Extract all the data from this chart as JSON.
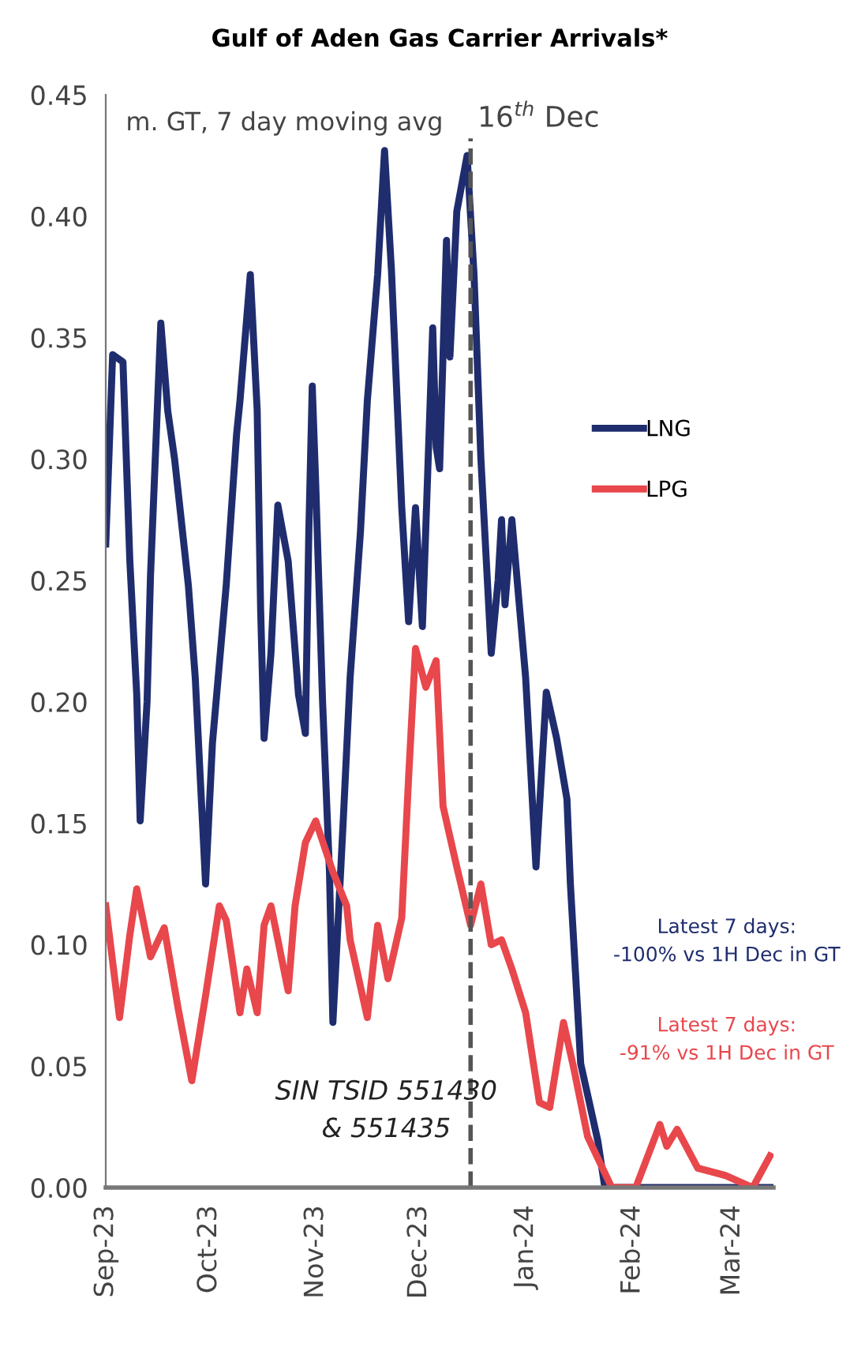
{
  "chart_data": {
    "type": "line",
    "title": "Gulf of Aden Gas Carrier Arrivals*",
    "x": [
      "2023-09-01",
      "2023-09-03",
      "2023-09-06",
      "2023-09-08",
      "2023-09-10",
      "2023-09-11",
      "2023-09-13",
      "2023-09-14",
      "2023-09-17",
      "2023-09-19",
      "2023-09-21",
      "2023-09-25",
      "2023-09-27",
      "2023-09-30",
      "2023-10-02",
      "2023-10-06",
      "2023-10-09",
      "2023-10-10",
      "2023-10-13",
      "2023-10-15",
      "2023-10-16",
      "2023-10-17",
      "2023-10-19",
      "2023-10-21",
      "2023-10-24",
      "2023-10-27",
      "2023-10-29",
      "2023-10-30",
      "2023-10-31",
      "2023-11-01",
      "2023-11-03",
      "2023-11-05",
      "2023-11-06",
      "2023-11-09",
      "2023-11-11",
      "2023-11-14",
      "2023-11-16",
      "2023-11-19",
      "2023-11-21",
      "2023-11-23",
      "2023-11-26",
      "2023-11-28",
      "2023-11-30",
      "2023-12-02",
      "2023-12-05",
      "2023-12-06",
      "2023-12-07",
      "2023-12-09",
      "2023-12-10",
      "2023-12-12",
      "2023-12-15",
      "2023-12-16",
      "2023-12-17",
      "2023-12-19",
      "2023-12-22",
      "2023-12-24",
      "2023-12-25",
      "2023-12-26",
      "2023-12-28",
      "2024-01-01",
      "2024-01-04",
      "2024-01-07",
      "2024-01-10",
      "2024-01-13",
      "2024-01-14",
      "2024-01-17",
      "2024-01-22",
      "2024-01-24",
      "2024-03-12"
    ],
    "series": [
      {
        "name": "LNG",
        "color": "#1f2d6e",
        "values": [
          0.265,
          0.343,
          0.34,
          0.258,
          0.203,
          0.151,
          0.2,
          0.252,
          0.356,
          0.32,
          0.3,
          0.248,
          0.21,
          0.125,
          0.183,
          0.248,
          0.31,
          0.324,
          0.376,
          0.32,
          0.238,
          0.185,
          0.22,
          0.281,
          0.258,
          0.203,
          0.187,
          0.27,
          0.33,
          0.29,
          0.2,
          0.13,
          0.068,
          0.151,
          0.21,
          0.27,
          0.324,
          0.376,
          0.427,
          0.378,
          0.28,
          0.233,
          0.28,
          0.231,
          0.354,
          0.305,
          0.296,
          0.39,
          0.342,
          0.402,
          0.425,
          0.4,
          0.376,
          0.3,
          0.22,
          0.25,
          0.275,
          0.24,
          0.275,
          0.21,
          0.132,
          0.204,
          0.185,
          0.16,
          0.125,
          0.051,
          0.019,
          0.0,
          0.0
        ]
      },
      {
        "name": "LPG",
        "color": "#e8474c",
        "x": [
          "2023-09-01",
          "2023-09-05",
          "2023-09-08",
          "2023-09-10",
          "2023-09-14",
          "2023-09-18",
          "2023-09-22",
          "2023-09-26",
          "2023-09-30",
          "2023-10-04",
          "2023-10-06",
          "2023-10-10",
          "2023-10-12",
          "2023-10-15",
          "2023-10-17",
          "2023-10-19",
          "2023-10-24",
          "2023-10-26",
          "2023-10-29",
          "2023-11-01",
          "2023-11-06",
          "2023-11-10",
          "2023-11-11",
          "2023-11-16",
          "2023-11-19",
          "2023-11-22",
          "2023-11-26",
          "2023-11-28",
          "2023-11-30",
          "2023-12-03",
          "2023-12-06",
          "2023-12-08",
          "2023-12-12",
          "2023-12-16",
          "2023-12-19",
          "2023-12-22",
          "2023-12-25",
          "2023-12-28",
          "2024-01-01",
          "2024-01-05",
          "2024-01-08",
          "2024-01-12",
          "2024-01-15",
          "2024-01-19",
          "2024-01-22",
          "2024-01-26",
          "2024-02-02",
          "2024-02-09",
          "2024-02-11",
          "2024-02-14",
          "2024-02-20",
          "2024-02-28",
          "2024-03-07",
          "2024-03-12"
        ],
        "values": [
          0.116,
          0.07,
          0.104,
          0.123,
          0.095,
          0.107,
          0.074,
          0.044,
          0.079,
          0.116,
          0.11,
          0.072,
          0.09,
          0.072,
          0.108,
          0.116,
          0.081,
          0.116,
          0.142,
          0.151,
          0.13,
          0.116,
          0.102,
          0.07,
          0.108,
          0.086,
          0.111,
          0.169,
          0.222,
          0.206,
          0.217,
          0.157,
          0.132,
          0.108,
          0.125,
          0.1,
          0.102,
          0.09,
          0.072,
          0.035,
          0.033,
          0.068,
          0.049,
          0.021,
          0.012,
          0.0,
          0.0,
          0.026,
          0.017,
          0.024,
          0.008,
          0.005,
          0.0,
          0.013
        ]
      }
    ],
    "xlim": [
      "2023-09-01",
      "2024-03-13"
    ],
    "xticks": [
      {
        "value": "2023-09-01",
        "label": "Sep-23"
      },
      {
        "value": "2023-10-01",
        "label": "Oct-23"
      },
      {
        "value": "2023-11-01",
        "label": "Nov-23"
      },
      {
        "value": "2023-12-01",
        "label": "Dec-23"
      },
      {
        "value": "2024-01-01",
        "label": "Jan-24"
      },
      {
        "value": "2024-02-01",
        "label": "Feb-24"
      },
      {
        "value": "2024-03-01",
        "label": "Mar-24"
      }
    ],
    "ylim": [
      0,
      0.45
    ],
    "yticks": [
      {
        "value": 0,
        "label": "0.00"
      },
      {
        "value": 0.05,
        "label": "0.05"
      },
      {
        "value": 0.1,
        "label": "0.10"
      },
      {
        "value": 0.15,
        "label": "0.15"
      },
      {
        "value": 0.2,
        "label": "0.20"
      },
      {
        "value": 0.25,
        "label": "0.25"
      },
      {
        "value": 0.3,
        "label": "0.30"
      },
      {
        "value": 0.35,
        "label": "0.35"
      },
      {
        "value": 0.4,
        "label": "0.40"
      },
      {
        "value": 0.45,
        "label": "0.45"
      }
    ],
    "ref_lines": [
      {
        "axis": "x",
        "value": "2023-12-16",
        "label": "16$^{th}$ Dec",
        "color": "#555555",
        "line_style": "dashed"
      }
    ],
    "annotations": [
      "m. GT, 7 day moving avg",
      "SIN TSID 551430\n& 551435",
      "Latest 7 days:\n-100% vs 1H Dec in GT",
      "Latest 7 days:\n-91% vs 1H Dec in GT"
    ],
    "legend": "right",
    "grid": false,
    "marker": "none",
    "line_style": "solid"
  }
}
